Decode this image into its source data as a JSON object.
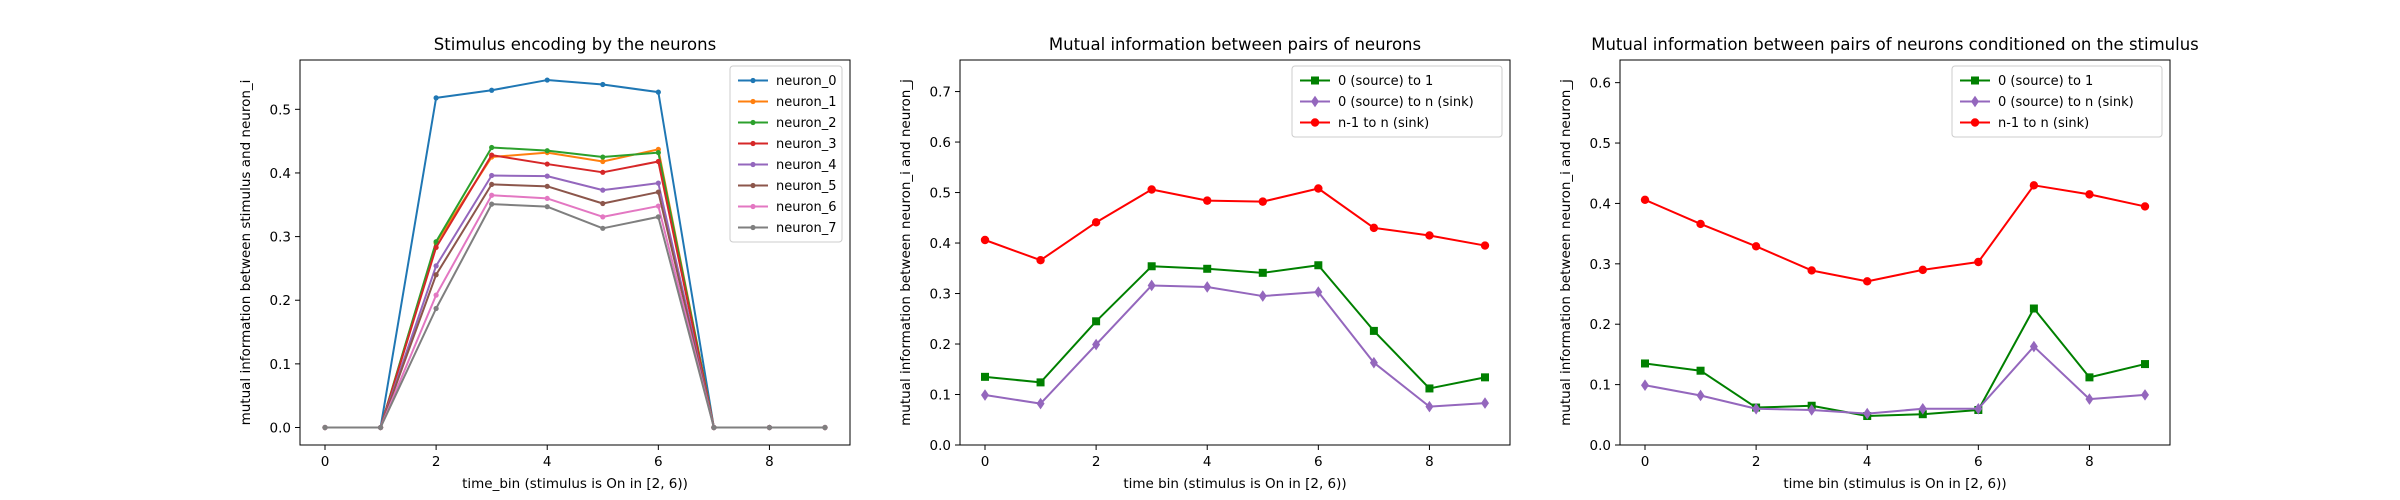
{
  "chart_data": [
    {
      "type": "line",
      "title": "Stimulus encoding by the neurons",
      "xlabel": "time_bin (stimulus is On in [2, 6))",
      "ylabel": "mutual information between stimulus and neuron_i",
      "xlim": [
        -0.45,
        9.45
      ],
      "ylim": [
        -0.0275,
        0.5775
      ],
      "xticks": [
        0,
        2,
        4,
        6,
        8
      ],
      "yticks": [
        0.0,
        0.1,
        0.2,
        0.3,
        0.4,
        0.5
      ],
      "ytick_labels": [
        "0.0",
        "0.1",
        "0.2",
        "0.3",
        "0.4",
        "0.5"
      ],
      "legend_position": "upper right",
      "grid": false,
      "x": [
        0,
        1,
        2,
        3,
        4,
        5,
        6,
        7,
        8,
        9
      ],
      "series": [
        {
          "name": "neuron_0",
          "color": "#1f77b4",
          "marker": "dot",
          "values": [
            0,
            0,
            0.518,
            0.53,
            0.546,
            0.539,
            0.527,
            0,
            0,
            0
          ]
        },
        {
          "name": "neuron_1",
          "color": "#ff7f0e",
          "marker": "dot",
          "values": [
            0,
            0,
            0.29,
            0.425,
            0.432,
            0.418,
            0.437,
            0,
            0,
            0
          ]
        },
        {
          "name": "neuron_2",
          "color": "#2ca02c",
          "marker": "dot",
          "values": [
            0,
            0,
            0.292,
            0.44,
            0.435,
            0.425,
            0.432,
            0,
            0,
            0
          ]
        },
        {
          "name": "neuron_3",
          "color": "#d62728",
          "marker": "dot",
          "values": [
            0,
            0,
            0.283,
            0.428,
            0.414,
            0.401,
            0.418,
            0,
            0,
            0
          ]
        },
        {
          "name": "neuron_4",
          "color": "#9467bd",
          "marker": "dot",
          "values": [
            0,
            0,
            0.254,
            0.396,
            0.395,
            0.373,
            0.384,
            0,
            0,
            0
          ]
        },
        {
          "name": "neuron_5",
          "color": "#8c564b",
          "marker": "dot",
          "values": [
            0,
            0,
            0.24,
            0.382,
            0.379,
            0.352,
            0.37,
            0,
            0,
            0
          ]
        },
        {
          "name": "neuron_6",
          "color": "#e377c2",
          "marker": "dot",
          "values": [
            0,
            0,
            0.208,
            0.365,
            0.36,
            0.331,
            0.348,
            0,
            0,
            0
          ]
        },
        {
          "name": "neuron_7",
          "color": "#7f7f7f",
          "marker": "dot",
          "values": [
            0,
            0,
            0.187,
            0.351,
            0.347,
            0.313,
            0.331,
            0,
            0,
            0
          ]
        }
      ]
    },
    {
      "type": "line",
      "title": "Mutual information between pairs of neurons",
      "xlabel": "time bin (stimulus is On in [2, 6))",
      "ylabel": "mutual information between neuron_i and neuron_j",
      "xlim": [
        -0.45,
        9.45
      ],
      "ylim": [
        0,
        0.7625
      ],
      "xticks": [
        0,
        2,
        4,
        6,
        8
      ],
      "yticks": [
        0.0,
        0.1,
        0.2,
        0.3,
        0.4,
        0.5,
        0.6,
        0.7
      ],
      "ytick_labels": [
        "0.0",
        "0.1",
        "0.2",
        "0.3",
        "0.4",
        "0.5",
        "0.6",
        "0.7"
      ],
      "legend_position": "upper right",
      "grid": false,
      "x": [
        0,
        1,
        2,
        3,
        4,
        5,
        6,
        7,
        8,
        9
      ],
      "series": [
        {
          "name": "0 (source) to 1",
          "color": "#008000",
          "marker": "square",
          "values": [
            0.135,
            0.124,
            0.245,
            0.354,
            0.349,
            0.341,
            0.356,
            0.226,
            0.112,
            0.134
          ]
        },
        {
          "name": "0 (source) to n (sink)",
          "color": "#9467bd",
          "marker": "diamond",
          "values": [
            0.099,
            0.082,
            0.199,
            0.316,
            0.313,
            0.295,
            0.303,
            0.163,
            0.076,
            0.083
          ]
        },
        {
          "name": "n-1 to n (sink)",
          "color": "#ff0000",
          "marker": "circle",
          "values": [
            0.406,
            0.366,
            0.441,
            0.506,
            0.484,
            0.482,
            0.508,
            0.43,
            0.415,
            0.395
          ]
        }
      ]
    },
    {
      "type": "line",
      "title": "Mutual information between pairs of neurons conditioned on the stimulus",
      "xlabel": "time bin (stimulus is On in [2, 6))",
      "ylabel": "mutual information between neuron_i and neuron_j",
      "xlim": [
        -0.45,
        9.45
      ],
      "ylim": [
        0,
        0.6375
      ],
      "xticks": [
        0,
        2,
        4,
        6,
        8
      ],
      "yticks": [
        0.0,
        0.1,
        0.2,
        0.3,
        0.4,
        0.5,
        0.6
      ],
      "ytick_labels": [
        "0.0",
        "0.1",
        "0.2",
        "0.3",
        "0.4",
        "0.5",
        "0.6"
      ],
      "legend_position": "upper right",
      "grid": false,
      "x": [
        0,
        1,
        2,
        3,
        4,
        5,
        6,
        7,
        8,
        9
      ],
      "series": [
        {
          "name": "0 (source) to 1",
          "color": "#008000",
          "marker": "square",
          "values": [
            0.135,
            0.123,
            0.062,
            0.065,
            0.048,
            0.051,
            0.058,
            0.226,
            0.112,
            0.134
          ]
        },
        {
          "name": "0 (source) to n (sink)",
          "color": "#9467bd",
          "marker": "diamond",
          "values": [
            0.099,
            0.082,
            0.06,
            0.058,
            0.052,
            0.06,
            0.06,
            0.163,
            0.076,
            0.083
          ]
        },
        {
          "name": "n-1 to n (sink)",
          "color": "#ff0000",
          "marker": "circle",
          "values": [
            0.406,
            0.366,
            0.329,
            0.289,
            0.271,
            0.29,
            0.303,
            0.43,
            0.415,
            0.395
          ]
        }
      ]
    }
  ]
}
